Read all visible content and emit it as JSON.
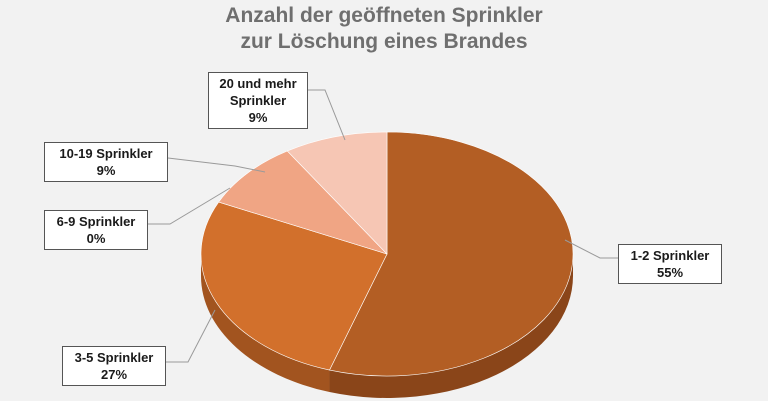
{
  "chart_data": {
    "type": "pie",
    "title_lines": [
      "Anzahl der geöffneten Sprinkler",
      "zur Löschung eines Brandes"
    ],
    "slices": [
      {
        "label": "1-2 Sprinkler",
        "percent_label": "55%",
        "value": 55,
        "color": "#b35e24",
        "side": "#8a4519"
      },
      {
        "label": "3-5 Sprinkler",
        "percent_label": "27%",
        "value": 27,
        "color": "#d2702c",
        "side": "#a2541f"
      },
      {
        "label": "6-9 Sprinkler",
        "percent_label": "0%",
        "value": 0,
        "color": "#e08d5a",
        "side": "#b36d42"
      },
      {
        "label": "10-19 Sprinkler",
        "percent_label": "9%",
        "value": 9,
        "color": "#f0a584",
        "side": "#c28063"
      },
      {
        "label": "20 und mehr Sprinkler",
        "label_lines": [
          "20 und mehr",
          "Sprinkler"
        ],
        "percent_label": "9%",
        "value": 9,
        "color": "#f6c6b4",
        "side": "#c99a88"
      }
    ],
    "legend": "none"
  }
}
